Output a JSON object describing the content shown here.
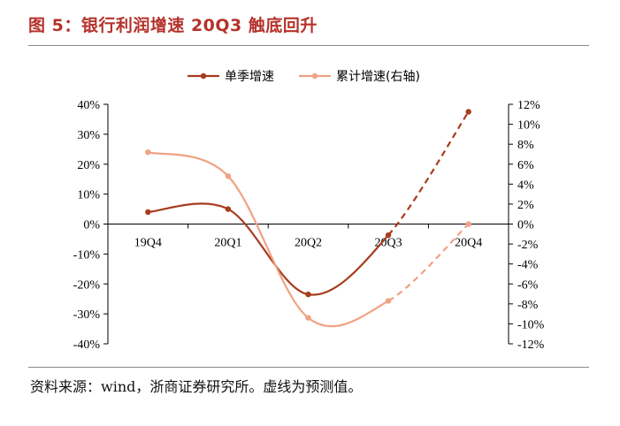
{
  "figure": {
    "title": "图 5：银行利润增速 20Q3 触底回升",
    "source": "资料来源：wind，浙商证券研究所。虚线为预测值。"
  },
  "colors": {
    "series1": "#a83c1e",
    "series2": "#f0a284",
    "axis": "#000000",
    "title": "#b5322b"
  },
  "chart_data": {
    "type": "line",
    "categories": [
      "19Q4",
      "20Q1",
      "20Q2",
      "20Q3",
      "20Q4"
    ],
    "y_left": {
      "min": -40,
      "max": 40,
      "step": 10,
      "tick_labels": [
        "40%",
        "30%",
        "20%",
        "10%",
        "0%",
        "-10%",
        "-20%",
        "-30%",
        "-40%"
      ]
    },
    "y_right": {
      "min": -12,
      "max": 12,
      "step": 2,
      "tick_labels": [
        "12%",
        "10%",
        "8%",
        "6%",
        "4%",
        "2%",
        "0%",
        "-2%",
        "-4%",
        "-6%",
        "-8%",
        "-10%",
        "-12%"
      ]
    },
    "series": [
      {
        "name": "单季增速",
        "axis": "left",
        "values": [
          4.0,
          5.0,
          -23.5,
          -3.7,
          37.5
        ],
        "forecast_from_index": 3
      },
      {
        "name": "累计增速(右轴)",
        "axis": "right",
        "values": [
          7.2,
          4.8,
          -9.4,
          -7.7,
          0.0
        ],
        "forecast_from_index": 3
      }
    ],
    "legend": [
      "单季增速",
      "累计增速(右轴)"
    ],
    "legend_position": "top-center",
    "note": "dashed segments are forecasts"
  }
}
